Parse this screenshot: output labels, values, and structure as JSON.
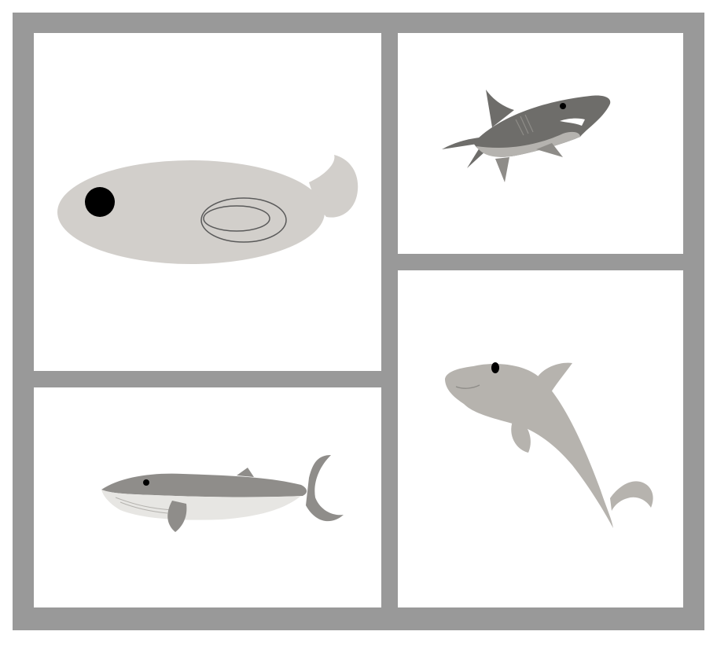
{
  "colors": {
    "frame": "#999999",
    "panel_bg": "#ffffff",
    "fish_body": "#d2cfcb",
    "fish_outline": "#5a5a5a",
    "eye": "#000000",
    "shark_dark": "#6e6d6a",
    "shark_mid": "#8e8c88",
    "shark_light": "#b5b3af",
    "whale_dark": "#8f8d8a",
    "whale_belly": "#e7e6e3",
    "dolphin": "#b6b3ae"
  },
  "panels": [
    {
      "id": "panel-tl",
      "icon": "fish-icon"
    },
    {
      "id": "panel-tr",
      "icon": "shark-icon"
    },
    {
      "id": "panel-bl",
      "icon": "whale-icon"
    },
    {
      "id": "panel-br",
      "icon": "dolphin-icon"
    }
  ]
}
